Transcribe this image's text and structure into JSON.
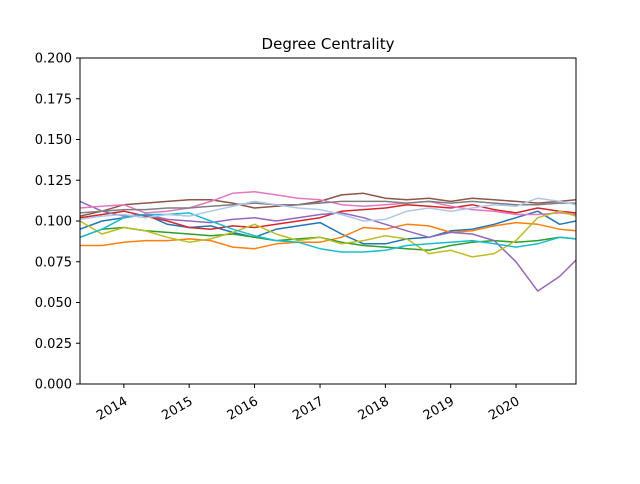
{
  "chart_data": {
    "type": "line",
    "title": "Degree Centrality",
    "xlabel": "",
    "ylabel": "",
    "x_type": "date",
    "xlim": [
      "2013-05-01",
      "2020-12-01"
    ],
    "ylim": [
      0,
      0.2
    ],
    "grid": false,
    "legend": "none",
    "x_ticks": [
      "2014-01-01",
      "2015-01-01",
      "2016-01-01",
      "2017-01-01",
      "2018-01-01",
      "2019-01-01",
      "2020-01-01"
    ],
    "x_tick_labels": [
      "2014",
      "2015",
      "2016",
      "2017",
      "2018",
      "2019",
      "2020"
    ],
    "y_ticks": [
      0,
      0.025,
      0.05,
      0.075,
      0.1,
      0.125,
      0.15,
      0.175,
      0.2
    ],
    "y_tick_labels": [
      "0.000",
      "0.025",
      "0.050",
      "0.075",
      "0.100",
      "0.125",
      "0.150",
      "0.175",
      "0.200"
    ],
    "x": [
      "2013-05-01",
      "2013-09-01",
      "2014-01-01",
      "2014-05-01",
      "2014-09-01",
      "2015-01-01",
      "2015-05-01",
      "2015-09-01",
      "2016-01-01",
      "2016-05-01",
      "2016-09-01",
      "2017-01-01",
      "2017-05-01",
      "2017-09-01",
      "2018-01-01",
      "2018-05-01",
      "2018-09-01",
      "2019-01-01",
      "2019-05-01",
      "2019-09-01",
      "2020-01-01",
      "2020-05-01",
      "2020-09-01",
      "2020-12-01"
    ],
    "series": [
      {
        "color": "#1f77b4",
        "values": [
          0.095,
          0.1,
          0.102,
          0.104,
          0.098,
          0.096,
          0.097,
          0.093,
          0.09,
          0.095,
          0.097,
          0.099,
          0.092,
          0.086,
          0.086,
          0.089,
          0.09,
          0.094,
          0.095,
          0.098,
          0.102,
          0.106,
          0.098,
          0.1
        ]
      },
      {
        "color": "#ff7f0e",
        "values": [
          0.085,
          0.085,
          0.087,
          0.088,
          0.088,
          0.089,
          0.088,
          0.084,
          0.083,
          0.086,
          0.087,
          0.087,
          0.09,
          0.096,
          0.095,
          0.098,
          0.097,
          0.093,
          0.094,
          0.097,
          0.099,
          0.098,
          0.095,
          0.094
        ]
      },
      {
        "color": "#2ca02c",
        "values": [
          0.09,
          0.095,
          0.096,
          0.094,
          0.093,
          0.092,
          0.091,
          0.092,
          0.09,
          0.088,
          0.089,
          0.09,
          0.087,
          0.085,
          0.084,
          0.083,
          0.082,
          0.085,
          0.087,
          0.088,
          0.087,
          0.088,
          0.09,
          0.089
        ]
      },
      {
        "color": "#d62728",
        "values": [
          0.102,
          0.104,
          0.106,
          0.103,
          0.1,
          0.096,
          0.095,
          0.097,
          0.096,
          0.098,
          0.1,
          0.102,
          0.106,
          0.107,
          0.108,
          0.11,
          0.109,
          0.108,
          0.11,
          0.107,
          0.105,
          0.108,
          0.106,
          0.105
        ]
      },
      {
        "color": "#9467bd",
        "values": [
          0.112,
          0.106,
          0.103,
          0.104,
          0.101,
          0.1,
          0.099,
          0.101,
          0.102,
          0.1,
          0.102,
          0.104,
          0.105,
          0.102,
          0.098,
          0.094,
          0.09,
          0.093,
          0.092,
          0.088,
          0.075,
          0.057,
          0.066,
          0.076
        ]
      },
      {
        "color": "#8c564b",
        "values": [
          0.103,
          0.106,
          0.11,
          0.111,
          0.112,
          0.113,
          0.113,
          0.111,
          0.108,
          0.109,
          0.11,
          0.112,
          0.116,
          0.117,
          0.114,
          0.113,
          0.114,
          0.112,
          0.114,
          0.113,
          0.112,
          0.111,
          0.112,
          0.113
        ]
      },
      {
        "color": "#e377c2",
        "values": [
          0.108,
          0.109,
          0.11,
          0.105,
          0.106,
          0.108,
          0.112,
          0.117,
          0.118,
          0.116,
          0.114,
          0.113,
          0.11,
          0.109,
          0.11,
          0.111,
          0.112,
          0.109,
          0.107,
          0.106,
          0.104,
          0.104,
          0.105,
          0.104
        ]
      },
      {
        "color": "#7f7f7f",
        "values": [
          0.105,
          0.106,
          0.107,
          0.107,
          0.108,
          0.108,
          0.109,
          0.11,
          0.111,
          0.11,
          0.11,
          0.111,
          0.112,
          0.112,
          0.112,
          0.111,
          0.112,
          0.111,
          0.112,
          0.111,
          0.11,
          0.11,
          0.111,
          0.111
        ]
      },
      {
        "color": "#bcbd22",
        "values": [
          0.1,
          0.092,
          0.096,
          0.094,
          0.09,
          0.087,
          0.089,
          0.093,
          0.098,
          0.092,
          0.088,
          0.09,
          0.086,
          0.088,
          0.091,
          0.089,
          0.08,
          0.082,
          0.078,
          0.08,
          0.088,
          0.102,
          0.106,
          0.103
        ]
      },
      {
        "color": "#17becf",
        "values": [
          0.09,
          0.095,
          0.102,
          0.104,
          0.104,
          0.105,
          0.1,
          0.095,
          0.091,
          0.088,
          0.087,
          0.083,
          0.081,
          0.081,
          0.082,
          0.085,
          0.086,
          0.087,
          0.088,
          0.086,
          0.084,
          0.086,
          0.09,
          0.089
        ]
      },
      {
        "color": "#aec7e8",
        "values": [
          0.101,
          0.103,
          0.104,
          0.102,
          0.104,
          0.103,
          0.106,
          0.109,
          0.112,
          0.11,
          0.108,
          0.107,
          0.104,
          0.1,
          0.101,
          0.106,
          0.108,
          0.106,
          0.108,
          0.11,
          0.109,
          0.114,
          0.112,
          0.11
        ]
      }
    ]
  }
}
